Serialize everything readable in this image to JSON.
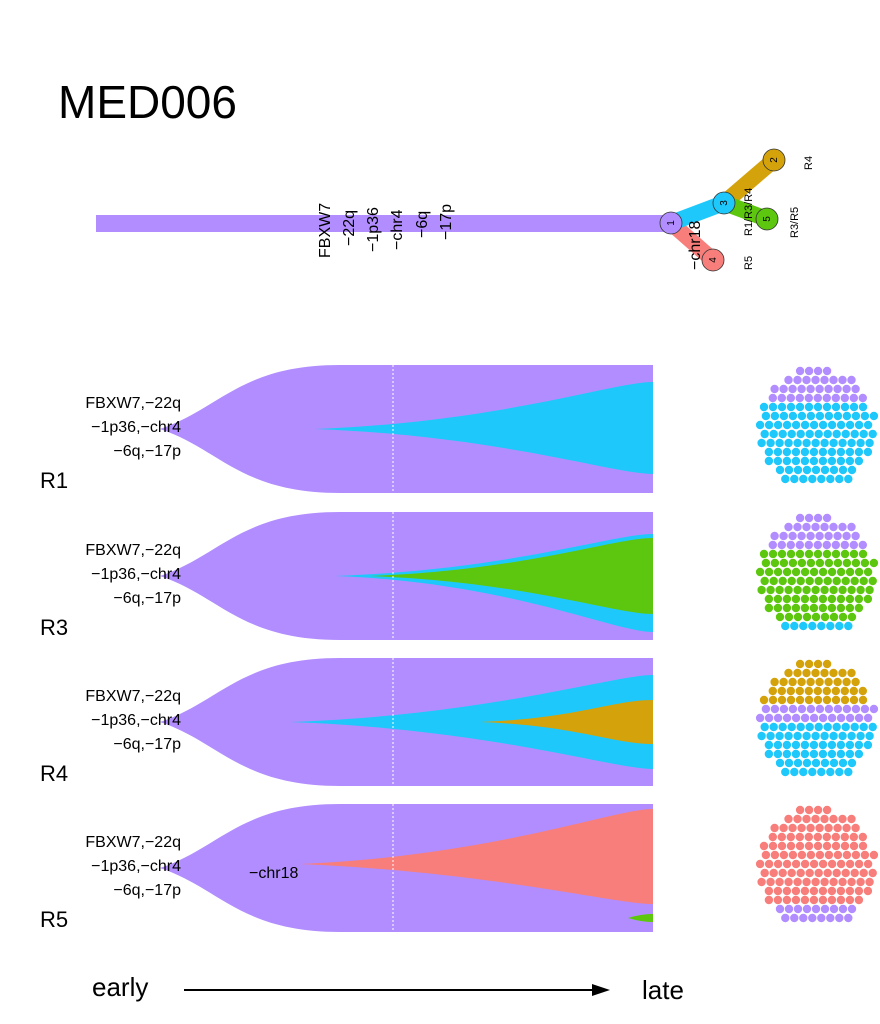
{
  "title": "MED006",
  "colors": {
    "clone1": "#B28DFF",
    "clone3": "#1EC8FA",
    "clone2": "#D4A20A",
    "clone5": "#5CC70E",
    "clone4": "#F77E7A",
    "guide": "#ffffff"
  },
  "tree": {
    "trunk_events": [
      "FBXW7",
      "−22q",
      "−1p36",
      "−chr4",
      "−6q",
      "−17p"
    ],
    "branch_event": "−chr18",
    "nodes": [
      {
        "id": "1",
        "color": "#B28DFF"
      },
      {
        "id": "2",
        "color": "#D4A20A"
      },
      {
        "id": "3",
        "color": "#1EC8FA"
      },
      {
        "id": "4",
        "color": "#F77E7A"
      },
      {
        "id": "5",
        "color": "#5CC70E"
      }
    ],
    "region_labels": {
      "node2": "R4",
      "node3": "R1/R3/R4",
      "node5a": "R1",
      "node5b": "R3/R5",
      "node4": "R5"
    }
  },
  "panels": [
    {
      "region": "R1",
      "event_lines": [
        "FBXW7,−22q",
        "−1p36,−chr4",
        "−6q,−17p"
      ],
      "branch_label": "",
      "dot_composition": [
        {
          "clone": "1",
          "fraction": 0.25
        },
        {
          "clone": "3",
          "fraction": 0.75
        }
      ]
    },
    {
      "region": "R3",
      "event_lines": [
        "FBXW7,−22q",
        "−1p36,−chr4",
        "−6q,−17p"
      ],
      "branch_label": "",
      "dot_composition": [
        {
          "clone": "1",
          "fraction": 0.25
        },
        {
          "clone": "5",
          "fraction": 0.6
        },
        {
          "clone": "3",
          "fraction": 0.15
        }
      ]
    },
    {
      "region": "R4",
      "event_lines": [
        "FBXW7,−22q",
        "−1p36,−chr4",
        "−6q,−17p"
      ],
      "branch_label": "",
      "dot_composition": [
        {
          "clone": "2",
          "fraction": 0.35
        },
        {
          "clone": "1",
          "fraction": 0.15
        },
        {
          "clone": "3",
          "fraction": 0.5
        }
      ]
    },
    {
      "region": "R5",
      "event_lines": [
        "FBXW7,−22q",
        "−1p36,−chr4",
        "−6q,−17p"
      ],
      "branch_label": "−chr18",
      "dot_composition": [
        {
          "clone": "4",
          "fraction": 0.78
        },
        {
          "clone": "1",
          "fraction": 0.15
        },
        {
          "clone": "5",
          "fraction": 0.07
        }
      ]
    }
  ],
  "time_axis": {
    "start_label": "early",
    "end_label": "late"
  }
}
